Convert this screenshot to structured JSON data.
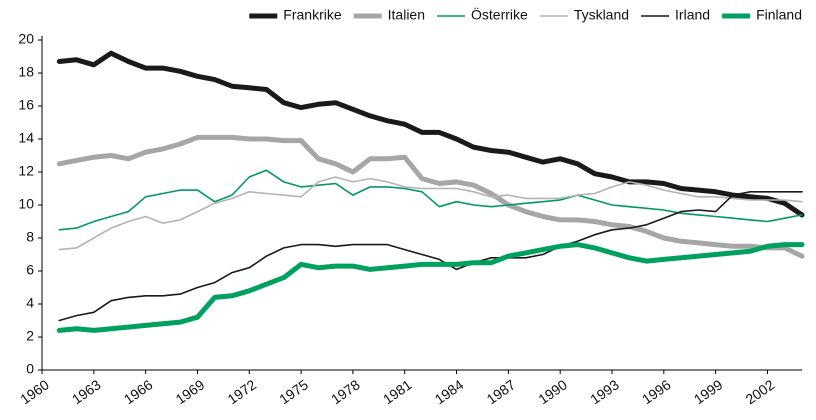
{
  "chart_data": {
    "type": "line",
    "x": [
      1961,
      1962,
      1963,
      1964,
      1965,
      1966,
      1967,
      1968,
      1969,
      1970,
      1971,
      1972,
      1973,
      1974,
      1975,
      1976,
      1977,
      1978,
      1979,
      1980,
      1981,
      1982,
      1983,
      1984,
      1985,
      1986,
      1987,
      1988,
      1989,
      1990,
      1991,
      1992,
      1993,
      1994,
      1995,
      1996,
      1997,
      1998,
      1999,
      2000,
      2001,
      2002,
      2003,
      2004
    ],
    "xlim": [
      1960,
      2004
    ],
    "xticks": [
      1960,
      1963,
      1966,
      1969,
      1972,
      1975,
      1978,
      1981,
      1984,
      1987,
      1990,
      1993,
      1996,
      1999,
      2002
    ],
    "ylim": [
      0,
      20
    ],
    "yticks": [
      0,
      2,
      4,
      6,
      8,
      10,
      12,
      14,
      16,
      18,
      20
    ],
    "legend": "top-right",
    "series": [
      {
        "name": "Frankrike",
        "color": "#1a1a1a",
        "line_width": 5,
        "values": [
          18.7,
          18.8,
          18.5,
          19.2,
          18.7,
          18.3,
          18.3,
          18.1,
          17.8,
          17.6,
          17.2,
          17.1,
          17.0,
          16.2,
          15.9,
          16.1,
          16.2,
          15.8,
          15.4,
          15.1,
          14.9,
          14.4,
          14.4,
          14.0,
          13.5,
          13.3,
          13.2,
          12.9,
          12.6,
          12.8,
          12.5,
          11.9,
          11.7,
          11.4,
          11.4,
          11.3,
          11.0,
          10.9,
          10.8,
          10.6,
          10.5,
          10.4,
          10.1,
          9.4
        ]
      },
      {
        "name": "Italien",
        "color": "#a6a6a6",
        "line_width": 5,
        "values": [
          12.5,
          12.7,
          12.9,
          13.0,
          12.8,
          13.2,
          13.4,
          13.7,
          14.1,
          14.1,
          14.1,
          14.0,
          14.0,
          13.9,
          13.9,
          12.8,
          12.5,
          12.0,
          12.8,
          12.8,
          12.9,
          11.6,
          11.3,
          11.4,
          11.2,
          10.7,
          10.0,
          9.6,
          9.3,
          9.1,
          9.1,
          9.0,
          8.8,
          8.7,
          8.4,
          8.0,
          7.8,
          7.7,
          7.6,
          7.5,
          7.5,
          7.4,
          7.4,
          6.9
        ]
      },
      {
        "name": "Österrike",
        "color": "#009a60",
        "line_width": 1.6,
        "values": [
          8.5,
          8.6,
          9.0,
          9.3,
          9.6,
          10.5,
          10.7,
          10.9,
          10.9,
          10.2,
          10.6,
          11.7,
          12.1,
          11.4,
          11.1,
          11.2,
          11.3,
          10.6,
          11.1,
          11.1,
          11.0,
          10.8,
          9.9,
          10.2,
          10.0,
          9.9,
          10.0,
          10.1,
          10.2,
          10.3,
          10.6,
          10.3,
          10.0,
          9.9,
          9.8,
          9.7,
          9.5,
          9.4,
          9.3,
          9.2,
          9.1,
          9.0,
          9.2,
          9.4
        ]
      },
      {
        "name": "Tyskland",
        "color": "#b3b3b3",
        "line_width": 1.6,
        "values": [
          7.3,
          7.4,
          8.0,
          8.6,
          9.0,
          9.3,
          8.9,
          9.1,
          9.6,
          10.1,
          10.4,
          10.8,
          10.7,
          10.6,
          10.5,
          11.4,
          11.7,
          11.4,
          11.6,
          11.4,
          11.1,
          11.0,
          11.0,
          11.0,
          10.8,
          10.5,
          10.6,
          10.4,
          10.4,
          10.4,
          10.6,
          10.7,
          11.1,
          11.4,
          11.2,
          10.9,
          10.7,
          10.5,
          10.5,
          10.4,
          10.3,
          10.3,
          10.3,
          10.2
        ]
      },
      {
        "name": "Irland",
        "color": "#1a1a1a",
        "line_width": 1.6,
        "values": [
          3.0,
          3.3,
          3.5,
          4.2,
          4.4,
          4.5,
          4.5,
          4.6,
          5.0,
          5.3,
          5.9,
          6.2,
          6.9,
          7.4,
          7.6,
          7.6,
          7.5,
          7.6,
          7.6,
          7.6,
          7.3,
          7.0,
          6.7,
          6.1,
          6.5,
          6.8,
          6.8,
          6.8,
          7.0,
          7.5,
          7.8,
          8.2,
          8.5,
          8.6,
          8.8,
          9.2,
          9.6,
          9.7,
          9.6,
          10.6,
          10.8,
          10.8,
          10.8,
          10.8
        ]
      },
      {
        "name": "Finland",
        "color": "#00a060",
        "line_width": 5,
        "values": [
          2.4,
          2.5,
          2.4,
          2.5,
          2.6,
          2.7,
          2.8,
          2.9,
          3.2,
          4.4,
          4.5,
          4.8,
          5.2,
          5.6,
          6.4,
          6.2,
          6.3,
          6.3,
          6.1,
          6.2,
          6.3,
          6.4,
          6.4,
          6.4,
          6.5,
          6.5,
          6.9,
          7.1,
          7.3,
          7.5,
          7.6,
          7.4,
          7.1,
          6.8,
          6.6,
          6.7,
          6.8,
          6.9,
          7.0,
          7.1,
          7.2,
          7.5,
          7.6,
          7.6
        ]
      }
    ]
  }
}
